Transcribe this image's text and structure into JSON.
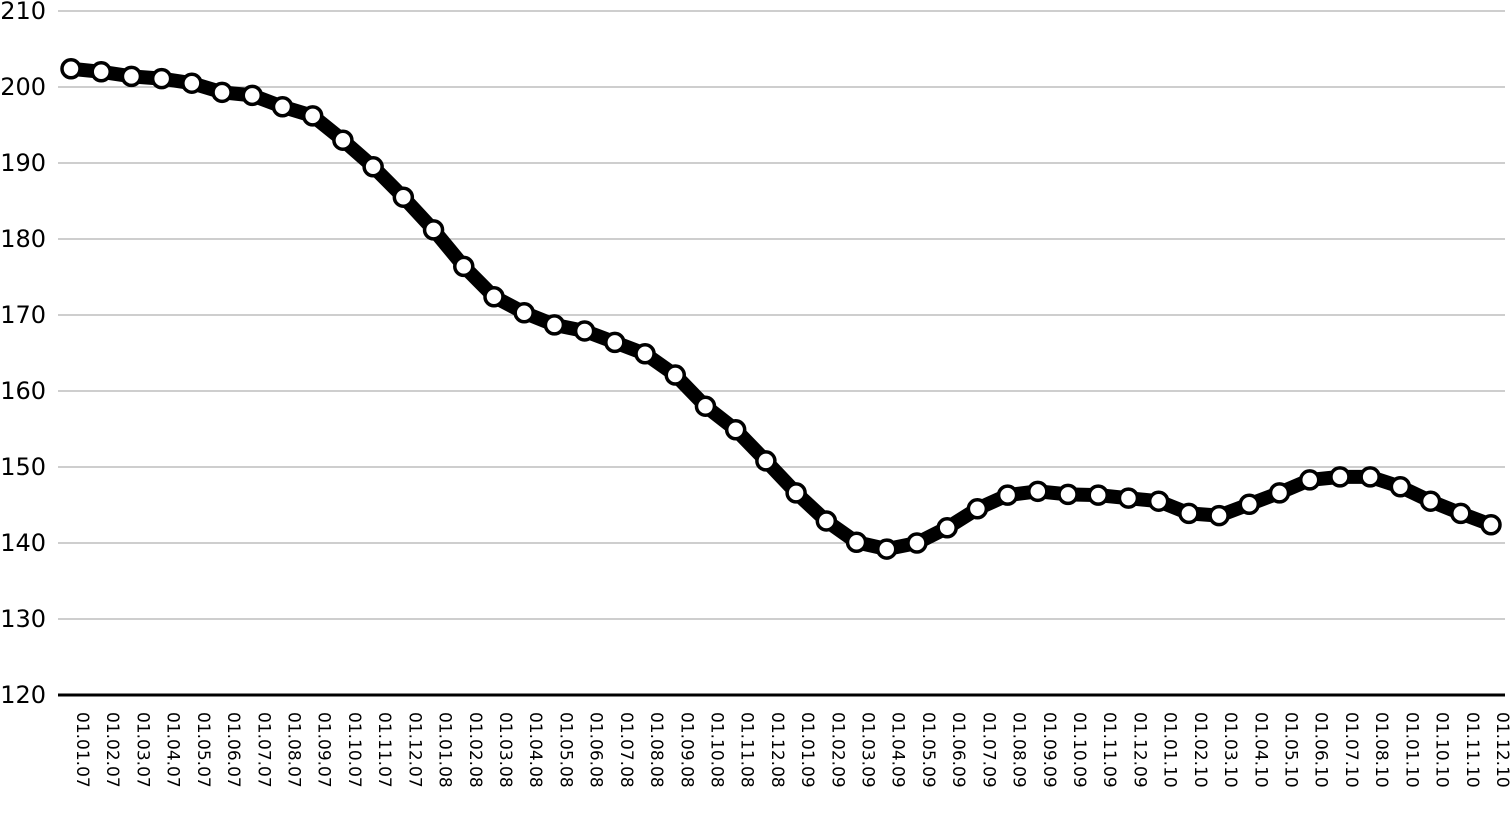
{
  "chart_data": {
    "type": "line",
    "title": "",
    "xlabel": "",
    "ylabel": "",
    "ylim": [
      120,
      210
    ],
    "yticks": [
      "120",
      "130",
      "140",
      "150",
      "160",
      "170",
      "180",
      "190",
      "200",
      "210"
    ],
    "grid": true,
    "legend": "none",
    "colors": {
      "line": "#000000",
      "marker_fill": "#ffffff",
      "grid": "#b0b0b0"
    },
    "categories": [
      "01.01.07",
      "01.02.07",
      "01.03.07",
      "01.04.07",
      "01.05.07",
      "01.06.07",
      "01.07.07",
      "01.08.07",
      "01.09.07",
      "01.10.07",
      "01.11.07",
      "01.12.07",
      "01.01.08",
      "01.02.08",
      "01.03.08",
      "01.04.08",
      "01.05.08",
      "01.06.08",
      "01.07.08",
      "01.08.08",
      "01.09.08",
      "01.10.08",
      "01.11.08",
      "01.12.08",
      "01.01.09",
      "01.02.09",
      "01.03.09",
      "01.04.09",
      "01.05.09",
      "01.06.09",
      "01.07.09",
      "01.08.09",
      "01.09.09",
      "01.10.09",
      "01.11.09",
      "01.12.09",
      "01.01.10",
      "01.02.10",
      "01.03.10",
      "01.04.10",
      "01.05.10",
      "01.06.10",
      "01.07.10",
      "01.08.10",
      "01.01.10",
      "01.10.10",
      "01.11.10",
      "01.12.10"
    ],
    "values": [
      202.4,
      202.0,
      201.4,
      201.1,
      200.5,
      199.3,
      198.9,
      197.4,
      196.2,
      193.0,
      189.5,
      185.5,
      181.2,
      176.4,
      172.4,
      170.3,
      168.7,
      167.9,
      166.4,
      164.9,
      162.1,
      158.0,
      154.9,
      150.8,
      146.6,
      142.9,
      140.1,
      139.2,
      140.0,
      142.0,
      144.5,
      146.3,
      146.8,
      146.4,
      146.3,
      145.9,
      145.5,
      143.9,
      143.6,
      145.1,
      146.6,
      148.3,
      148.7,
      148.7,
      147.4,
      145.5,
      143.9,
      142.4
    ]
  }
}
